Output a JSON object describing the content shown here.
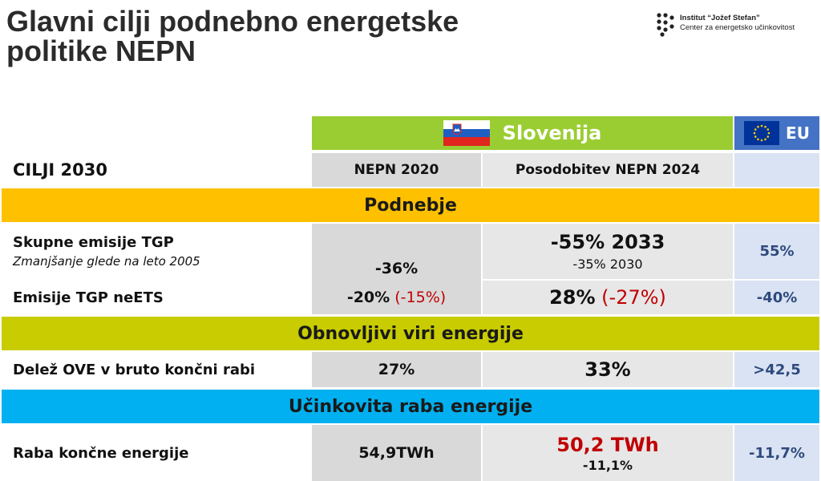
{
  "title": "Glavni cilji podnebno energetske politike NEPN",
  "logo": {
    "line1": "Institut “Jožef Stefan”",
    "line2": "Center za energetsko učinkovitost"
  },
  "header": {
    "slovenija": "Slovenija",
    "eu": "EU"
  },
  "columns": {
    "row_label": "CILJI 2030",
    "col1": "NEPN 2020",
    "col2": "Posodobitev NEPN 2024"
  },
  "sections": {
    "podnebje": "Podnebje",
    "obnovljivi": "Obnovljivi viri energije",
    "ucinkovita": "Učinkovita raba energije"
  },
  "rows": {
    "emisije": {
      "label": "Skupne emisije TGP",
      "note": "Zmanjšanje glede na leto 2005",
      "nepn2020": "-36%",
      "nepn2024_main": "-55% 2033",
      "nepn2024_sub": "-35% 2030",
      "eu": "55%"
    },
    "neets": {
      "label": "Emisije TGP neETS",
      "nepn2020": "-20%",
      "nepn2020_red": "(-15%)",
      "nepn2024": "28%",
      "nepn2024_red": "(-27%)",
      "eu": "-40%"
    },
    "ove": {
      "label": "Delež OVE v bruto končni rabi",
      "nepn2020": "27%",
      "nepn2024": "33%",
      "eu": ">42,5"
    },
    "raba": {
      "label": "Raba končne energije",
      "nepn2020": "54,9TWh",
      "nepn2024_main": "50,2 TWh",
      "nepn2024_sub": "-11,1%",
      "eu": "-11,7%"
    }
  },
  "colors": {
    "green": "#9acd32",
    "yellow": "#ffc000",
    "olive": "#c8cc00",
    "cyan": "#00b0f0",
    "eu_blue": "#4472c4",
    "red": "#c00000"
  }
}
